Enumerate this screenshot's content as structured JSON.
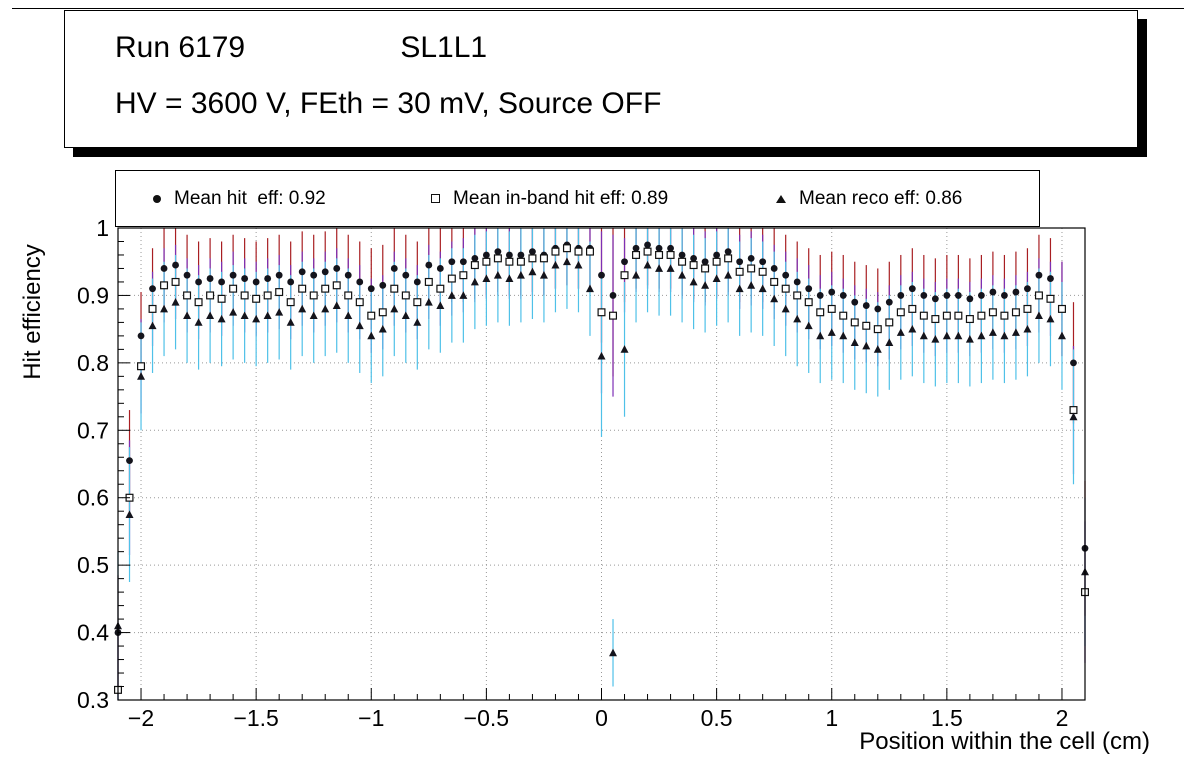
{
  "title": {
    "run": "Run 6179",
    "layer": "SL1L1",
    "conditions": "HV = 3600 V, FEth = 30 mV, Source OFF"
  },
  "legend": {
    "entries": [
      {
        "marker": "filled-circle",
        "label": "Mean hit  eff: 0.92"
      },
      {
        "marker": "open-square",
        "label": "Mean in-band hit eff: 0.89"
      },
      {
        "marker": "filled-triangle",
        "label": "Mean reco eff: 0.86"
      }
    ]
  },
  "chart_data": {
    "type": "scatter",
    "title": "Run 6179 SL1L1 — HV = 3600 V, FEth = 30 mV, Source OFF",
    "xlabel": "Position within the cell (cm)",
    "ylabel": "Hit efficiency",
    "xlim": [
      -2.1,
      2.1
    ],
    "ylim": [
      0.3,
      1.0
    ],
    "grid": true,
    "x_ticks": {
      "values": [
        -2,
        -1.5,
        -1,
        -0.5,
        0,
        0.5,
        1,
        1.5,
        2
      ],
      "labels": [
        "−2",
        "−1.5",
        "−1",
        "−0.5",
        "0",
        "0.5",
        "1",
        "1.5",
        "2"
      ],
      "minor_step": 0.1
    },
    "y_ticks": {
      "values": [
        0.3,
        0.4,
        0.5,
        0.6,
        0.7,
        0.8,
        0.9,
        1.0
      ],
      "labels": [
        "0.3",
        "0.4",
        "0.5",
        "0.6",
        "0.7",
        "0.8",
        "0.9",
        "1"
      ],
      "minor_step": 0.02
    },
    "x_start": -2.1,
    "x_step": 0.05,
    "n_points": 85,
    "series": [
      {
        "name": "Mean hit eff",
        "mean": 0.92,
        "marker": "filled-circle",
        "marker_color": "#14141c",
        "error_color": "#a81e22",
        "err_default": 0.06,
        "err_overrides": {
          "0": 0.085,
          "1": 0.075,
          "2": 0.065,
          "42": 0.1,
          "43": 0.12,
          "82": 0.07,
          "83": 0.09,
          "84": 0.1
        },
        "values": [
          0.4,
          0.655,
          0.84,
          0.91,
          0.94,
          0.945,
          0.93,
          0.92,
          0.925,
          0.92,
          0.93,
          0.925,
          0.92,
          0.925,
          0.93,
          0.92,
          0.935,
          0.93,
          0.935,
          0.94,
          0.93,
          0.92,
          0.91,
          0.915,
          0.94,
          0.93,
          0.92,
          0.945,
          0.94,
          0.95,
          0.95,
          0.955,
          0.96,
          0.965,
          0.96,
          0.96,
          0.965,
          0.96,
          0.97,
          0.975,
          0.97,
          0.97,
          0.93,
          0.9,
          0.95,
          0.97,
          0.975,
          0.97,
          0.97,
          0.96,
          0.955,
          0.95,
          0.96,
          0.965,
          0.95,
          0.955,
          0.95,
          0.94,
          0.93,
          0.92,
          0.91,
          0.9,
          0.905,
          0.9,
          0.89,
          0.885,
          0.88,
          0.89,
          0.9,
          0.91,
          0.9,
          0.895,
          0.9,
          0.9,
          0.895,
          0.9,
          0.905,
          0.9,
          0.905,
          0.91,
          0.93,
          0.925,
          0.88,
          0.8,
          0.525
        ]
      },
      {
        "name": "Mean in-band hit eff",
        "mean": 0.89,
        "marker": "open-square",
        "marker_color": "#ffffff",
        "error_color": "#7d30b5",
        "err_default": 0.055,
        "err_overrides": {
          "0": 0.1,
          "1": 0.085,
          "2": 0.07,
          "42": 0.12,
          "43": 0.12,
          "82": 0.07,
          "83": 0.095,
          "84": 0.105
        },
        "values": [
          0.315,
          0.6,
          0.795,
          0.88,
          0.915,
          0.92,
          0.9,
          0.89,
          0.9,
          0.895,
          0.91,
          0.9,
          0.895,
          0.9,
          0.905,
          0.89,
          0.91,
          0.9,
          0.91,
          0.915,
          0.9,
          0.89,
          0.87,
          0.875,
          0.91,
          0.9,
          0.89,
          0.92,
          0.91,
          0.925,
          0.93,
          0.945,
          0.95,
          0.955,
          0.95,
          0.95,
          0.955,
          0.955,
          0.965,
          0.97,
          0.965,
          0.965,
          0.875,
          0.87,
          0.93,
          0.96,
          0.965,
          0.96,
          0.96,
          0.95,
          0.945,
          0.94,
          0.95,
          0.955,
          0.935,
          0.94,
          0.935,
          0.92,
          0.91,
          0.9,
          0.89,
          0.875,
          0.88,
          0.87,
          0.86,
          0.855,
          0.85,
          0.86,
          0.875,
          0.88,
          0.87,
          0.865,
          0.87,
          0.87,
          0.865,
          0.87,
          0.875,
          0.87,
          0.875,
          0.88,
          0.9,
          0.895,
          0.88,
          0.73,
          0.46
        ]
      },
      {
        "name": "Mean reco eff",
        "mean": 0.86,
        "marker": "filled-triangle",
        "marker_color": "#14141c",
        "error_color": "#4fc1e8",
        "err_default": 0.07,
        "err_overrides": {
          "0": 0.11,
          "1": 0.1,
          "2": 0.08,
          "42": 0.12,
          "43": 0.05,
          "44": 0.1,
          "82": 0.08,
          "83": 0.1,
          "84": 0.11
        },
        "values": [
          0.41,
          0.575,
          0.78,
          0.855,
          0.88,
          0.89,
          0.87,
          0.86,
          0.87,
          0.865,
          0.875,
          0.87,
          0.865,
          0.87,
          0.875,
          0.86,
          0.88,
          0.87,
          0.88,
          0.885,
          0.87,
          0.855,
          0.84,
          0.85,
          0.88,
          0.87,
          0.86,
          0.89,
          0.885,
          0.9,
          0.9,
          0.92,
          0.925,
          0.93,
          0.925,
          0.93,
          0.935,
          0.93,
          0.945,
          0.95,
          0.945,
          0.91,
          0.81,
          0.37,
          0.82,
          0.93,
          0.945,
          0.94,
          0.94,
          0.93,
          0.92,
          0.915,
          0.925,
          0.93,
          0.91,
          0.915,
          0.91,
          0.895,
          0.88,
          0.865,
          0.855,
          0.84,
          0.845,
          0.84,
          0.83,
          0.825,
          0.82,
          0.83,
          0.845,
          0.85,
          0.84,
          0.835,
          0.84,
          0.84,
          0.835,
          0.84,
          0.845,
          0.84,
          0.845,
          0.85,
          0.87,
          0.865,
          0.84,
          0.72,
          0.49
        ]
      }
    ]
  }
}
